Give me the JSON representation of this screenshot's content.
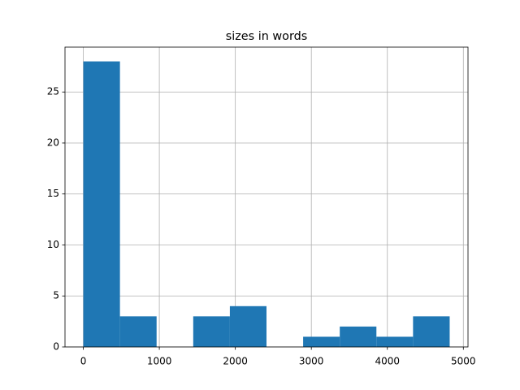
{
  "chart_data": {
    "type": "histogram",
    "title": "sizes in words",
    "bins": [
      0,
      482,
      964,
      1446,
      1928,
      2410,
      2892,
      3374,
      3856,
      4338,
      4820
    ],
    "values": [
      28,
      3,
      0,
      3,
      4,
      0,
      1,
      2,
      1,
      3
    ],
    "color": "#1f77b4",
    "xlim": [
      -241,
      5061
    ],
    "xticks": [
      0,
      1000,
      2000,
      3000,
      4000,
      5000
    ],
    "ylim": [
      0,
      29.4
    ],
    "yticks": [
      0,
      5,
      10,
      15,
      20,
      25
    ],
    "grid": true
  }
}
